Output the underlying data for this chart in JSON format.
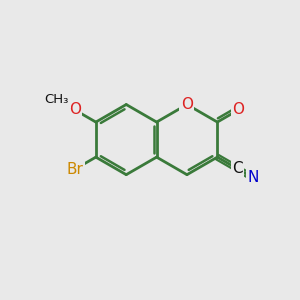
{
  "bg_color": "#e9e9e9",
  "bond_color": "#3a7a3a",
  "bond_width": 2.0,
  "atom_colors": {
    "Br": "#cc8800",
    "O_ring": "#dd2222",
    "O_carbonyl": "#dd2222",
    "O_methoxy": "#dd2222",
    "C_nitrile": "#111111",
    "N_nitrile": "#0000cc",
    "CH3": "#111111"
  },
  "font_size_atoms": 11,
  "font_size_small": 9.5
}
